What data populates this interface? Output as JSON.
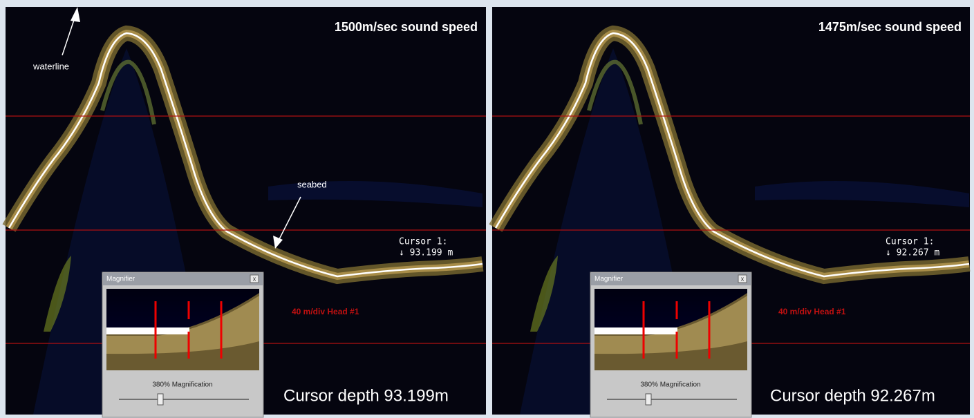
{
  "panels": [
    {
      "title": "1500m/sec sound speed",
      "waterline_label": "waterline",
      "seabed_label": "seabed",
      "cursor_label": "Cursor 1:",
      "cursor_value": "↓ 93.199 m",
      "scale_label": "40 m/div Head #1",
      "magnifier": {
        "title": "Magnifier",
        "close": "x",
        "caption": "380% Magnification"
      },
      "cursor_depth": "Cursor depth 93.199m"
    },
    {
      "title": "1475m/sec sound speed",
      "cursor_label": "Cursor 1:",
      "cursor_value": "↓ 92.267 m",
      "scale_label": "40 m/div Head #1",
      "magnifier": {
        "title": "Magnifier",
        "close": "x",
        "caption": "380% Magnification"
      },
      "cursor_depth": "Cursor depth 92.267m"
    }
  ]
}
